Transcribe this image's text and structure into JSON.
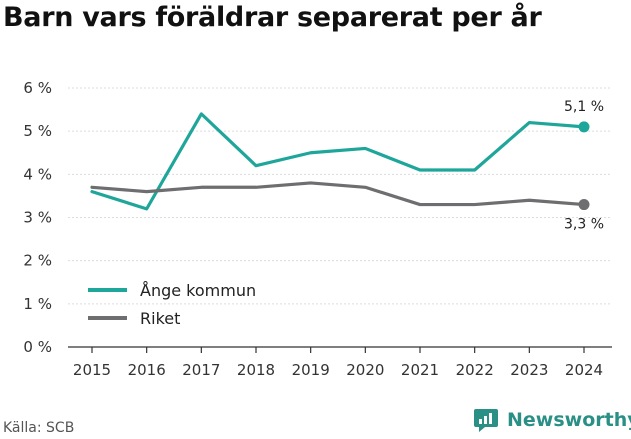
{
  "title": "Barn vars föräldrar separerat per år",
  "source": "Källa: SCB",
  "brand": {
    "name": "Newsworthy",
    "icon": "newsworthy-logo-icon"
  },
  "chart_data": {
    "type": "line",
    "x": [
      2015,
      2016,
      2017,
      2018,
      2019,
      2020,
      2021,
      2022,
      2023,
      2024
    ],
    "x_tick_labels": [
      "2015",
      "2016",
      "2017",
      "2018",
      "2019",
      "2020",
      "2021",
      "2022",
      "2023",
      "2024"
    ],
    "y_tick_labels": [
      "0 %",
      "1 %",
      "2 %",
      "3 %",
      "4 %",
      "5 %",
      "6 %"
    ],
    "ylim": [
      0,
      6
    ],
    "grid": true,
    "legend_position": "bottom-left",
    "series": [
      {
        "name": "Ånge kommun",
        "color": "#1fa69a",
        "values": [
          3.6,
          3.2,
          5.4,
          4.2,
          4.5,
          4.6,
          4.1,
          4.1,
          5.2,
          5.1
        ],
        "end_label": "5,1 %"
      },
      {
        "name": "Riket",
        "color": "#6e6e70",
        "values": [
          3.7,
          3.6,
          3.7,
          3.7,
          3.8,
          3.7,
          3.3,
          3.3,
          3.4,
          3.3
        ],
        "end_label": "3,3 %"
      }
    ]
  }
}
